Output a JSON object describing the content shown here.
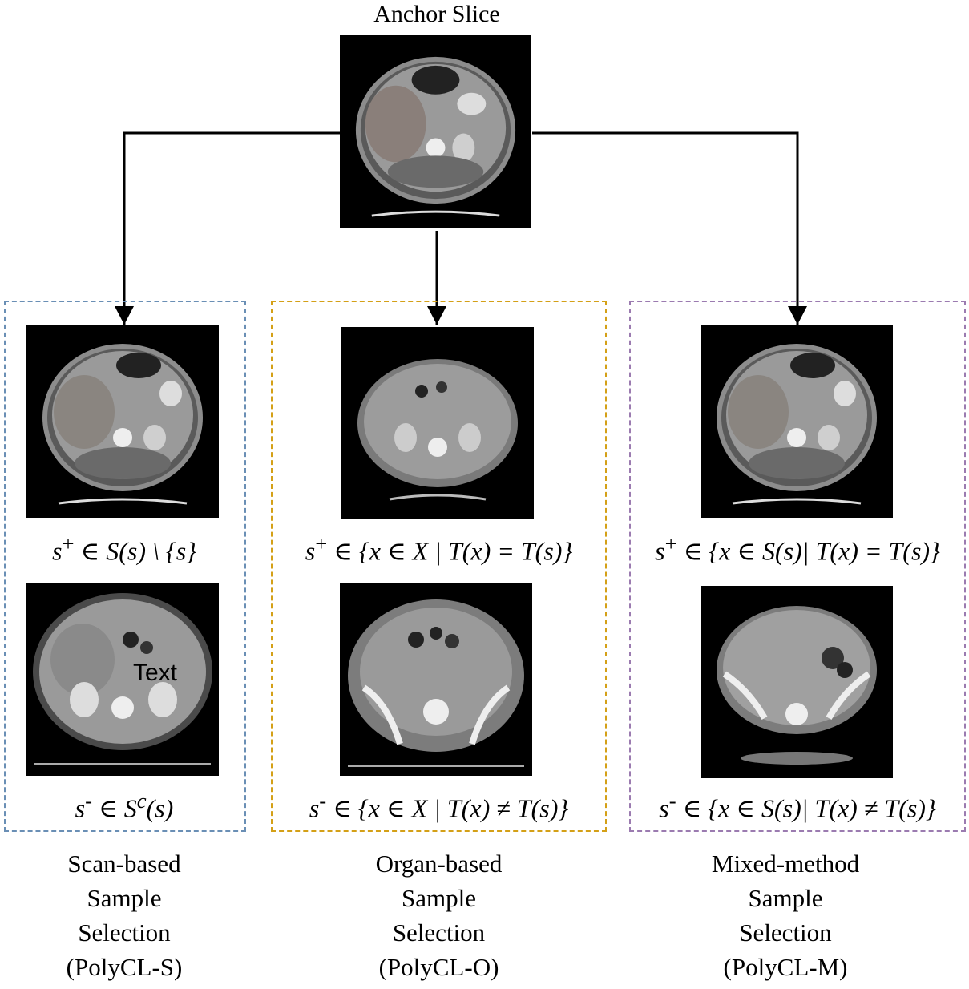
{
  "title": "Anchor Slice",
  "colors": {
    "scan_box": "#6a8fb5",
    "organ_box": "#d4a017",
    "mixed_box": "#9b7bb0",
    "arrow": "#000000"
  },
  "panels": [
    {
      "pos_formula": {
        "pre": "s",
        "sup": "+",
        "mid": " ∈ S(s) \\ {s}"
      },
      "neg_formula": {
        "pre": "s",
        "sup": "-",
        "mid": " ∈ S",
        "sup2": "c",
        "post": "(s)"
      },
      "caption": [
        "Scan-based",
        "Sample",
        "Selection",
        "(PolyCL-S)"
      ],
      "overlay_text": "Text"
    },
    {
      "pos_formula": {
        "pre": "s",
        "sup": "+",
        "mid": " ∈ {x ∈ X | T(x) = T(s)}"
      },
      "neg_formula": {
        "pre": "s",
        "sup": "-",
        "mid": " ∈ {x ∈ X | T(x) ≠ T(s)}"
      },
      "caption": [
        "Organ-based",
        "Sample",
        "Selection",
        "(PolyCL-O)"
      ]
    },
    {
      "pos_formula": {
        "pre": "s",
        "sup": "+",
        "mid": " ∈ {x ∈ S(s)| T(x) = T(s)}"
      },
      "neg_formula": {
        "pre": "s",
        "sup": "-",
        "mid": " ∈ {x ∈ S(s)| T(x) ≠ T(s)}"
      },
      "caption": [
        "Mixed-method",
        "Sample",
        "Selection",
        "(PolyCL-M)"
      ]
    }
  ]
}
